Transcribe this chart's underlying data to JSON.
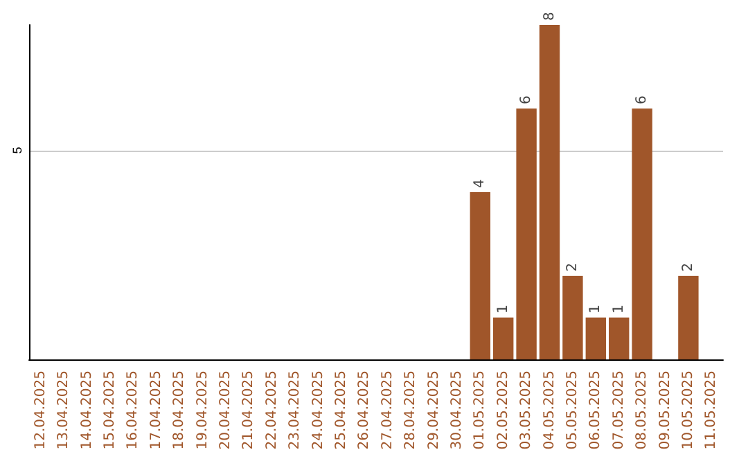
{
  "chart_data": {
    "type": "bar",
    "categories": [
      "12.04.2025",
      "13.04.2025",
      "14.04.2025",
      "15.04.2025",
      "16.04.2025",
      "17.04.2025",
      "18.04.2025",
      "19.04.2025",
      "20.04.2025",
      "21.04.2025",
      "22.04.2025",
      "23.04.2025",
      "24.04.2025",
      "25.04.2025",
      "26.04.2025",
      "27.04.2025",
      "28.04.2025",
      "29.04.2025",
      "30.04.2025",
      "01.05.2025",
      "02.05.2025",
      "03.05.2025",
      "04.05.2025",
      "05.05.2025",
      "06.05.2025",
      "07.05.2025",
      "08.05.2025",
      "09.05.2025",
      "10.05.2025",
      "11.05.2025"
    ],
    "values": [
      null,
      null,
      null,
      null,
      null,
      null,
      null,
      null,
      null,
      null,
      null,
      null,
      null,
      null,
      null,
      null,
      null,
      null,
      null,
      4,
      1,
      6,
      8,
      2,
      1,
      1,
      6,
      null,
      2,
      null
    ],
    "color": "#a0562a",
    "ylim": [
      0,
      8
    ],
    "yticks": [
      5
    ],
    "grid": "y",
    "data_labels": true
  }
}
